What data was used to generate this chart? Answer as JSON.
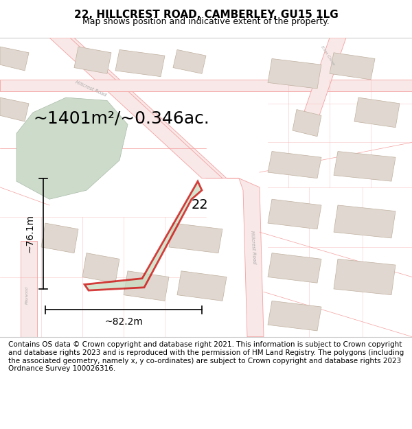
{
  "title": "22, HILLCREST ROAD, CAMBERLEY, GU15 1LG",
  "subtitle": "Map shows position and indicative extent of the property.",
  "area_text": "~1401m²/~0.346ac.",
  "dim_width": "~82.2m",
  "dim_height": "~76.1m",
  "label_22": "22",
  "footer": "Contains OS data © Crown copyright and database right 2021. This information is subject to Crown copyright and database rights 2023 and is reproduced with the permission of HM Land Registry. The polygons (including the associated geometry, namely x, y co-ordinates) are subject to Crown copyright and database rights 2023 Ordnance Survey 100026316.",
  "title_fontsize": 11,
  "subtitle_fontsize": 9,
  "footer_fontsize": 7.5,
  "area_fontsize": 18,
  "dim_fontsize": 10,
  "label_fontsize": 14,
  "road_color": "#f5a0a0",
  "road_fill": "#f8e8e8",
  "building_fc": "#e0d8d0",
  "building_ec": "#c0b0a0",
  "green_fc": "#cddcca",
  "green_ec": "#aabbaa",
  "plot_fc": "#c8dcc0",
  "plot_ec": "#cc0000"
}
